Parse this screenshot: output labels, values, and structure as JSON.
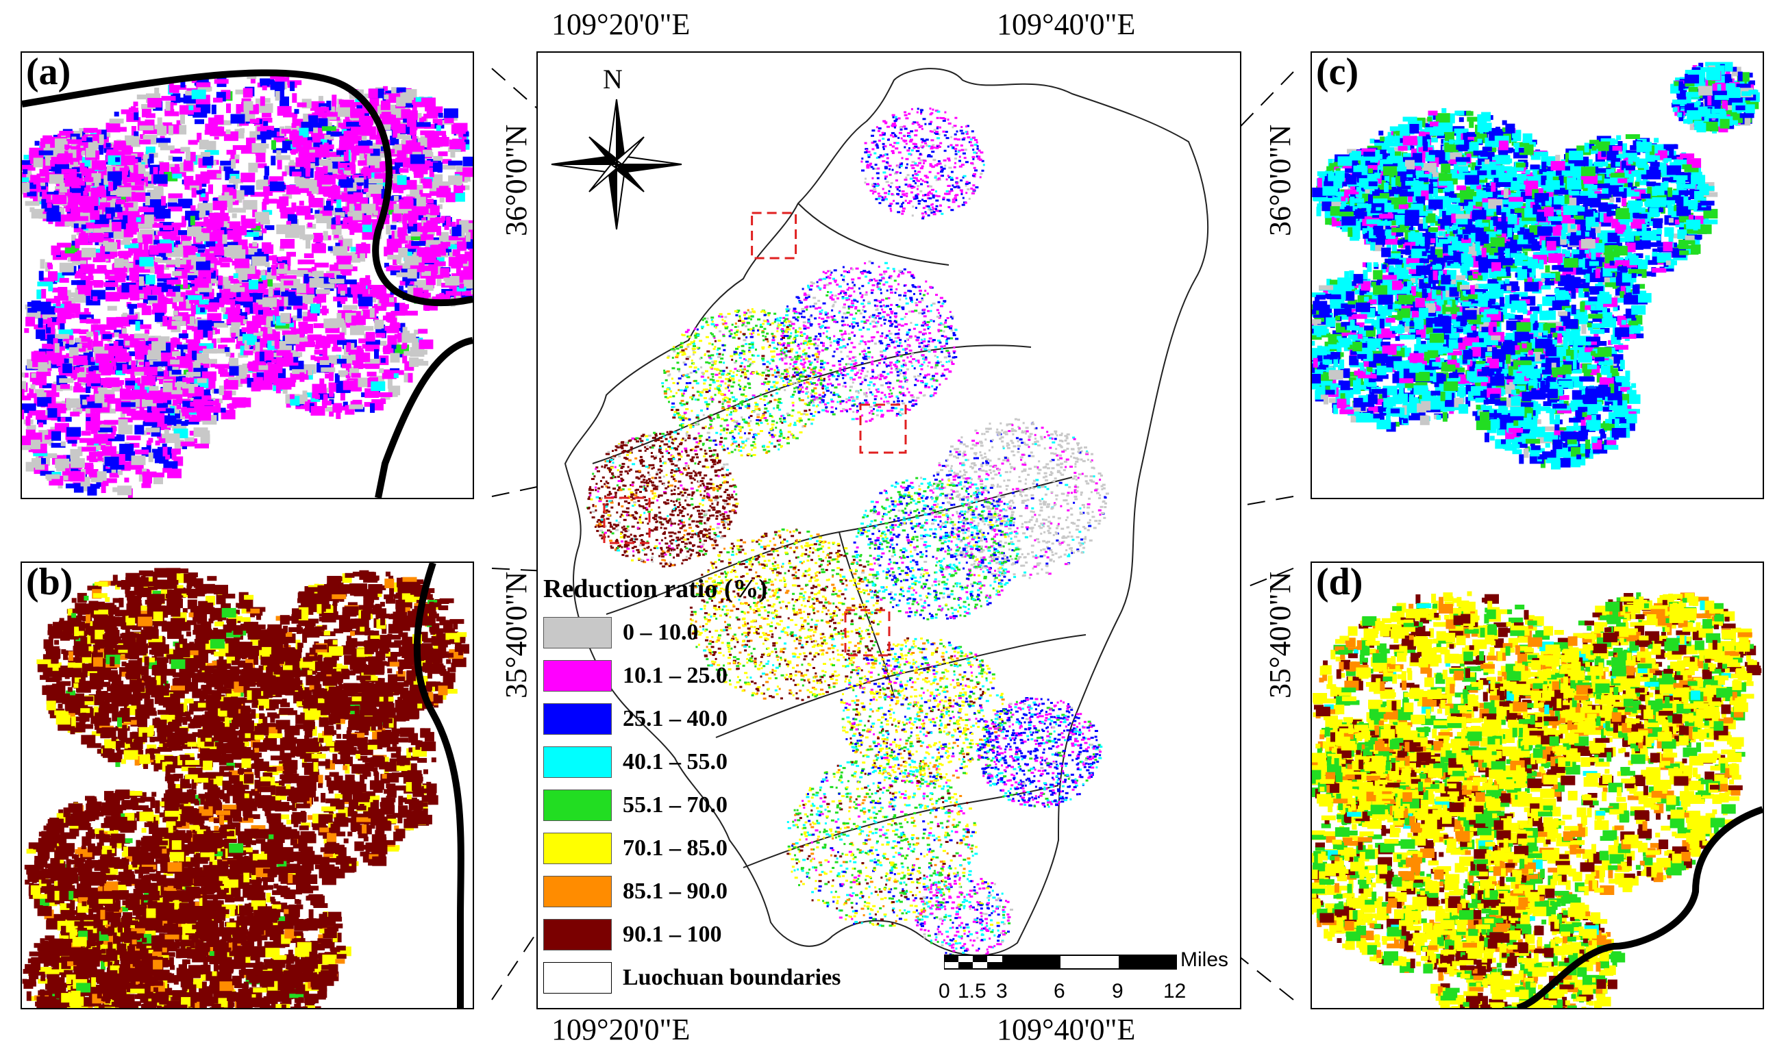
{
  "coords": {
    "top_left": "109°20'0\"E",
    "top_right": "109°40'0\"E",
    "bottom_left": "109°20'0\"E",
    "bottom_right": "109°40'0\"E",
    "left_top": "36°0'0\"N",
    "left_bottom": "35°40'0\"N",
    "right_top": "36°0'0\"N",
    "right_bottom": "35°40'0\"N"
  },
  "north_label": "N",
  "panels": {
    "a": "(a)",
    "b": "(b)",
    "c": "(c)",
    "d": "(d)"
  },
  "legend": {
    "title": "Reduction ratio (%)",
    "items": [
      {
        "label": "0 – 10.0",
        "color": "#c8c8c8"
      },
      {
        "label": "10.1 – 25.0",
        "color": "#ff00ff"
      },
      {
        "label": "25.1 – 40.0",
        "color": "#0000ff"
      },
      {
        "label": "40.1 – 55.0",
        "color": "#00ffff"
      },
      {
        "label": "55.1 – 70.0",
        "color": "#22dd22"
      },
      {
        "label": "70.1 – 85.0",
        "color": "#ffff00"
      },
      {
        "label": "85.1 – 90.0",
        "color": "#ff8c00"
      },
      {
        "label": "90.1 – 100",
        "color": "#7a0000"
      },
      {
        "label": "Luochuan boundaries",
        "color": "#ffffff"
      }
    ]
  },
  "scale": {
    "ticks": [
      "0",
      "1.5",
      "3",
      "6",
      "9",
      "12"
    ],
    "unit": "Miles"
  }
}
